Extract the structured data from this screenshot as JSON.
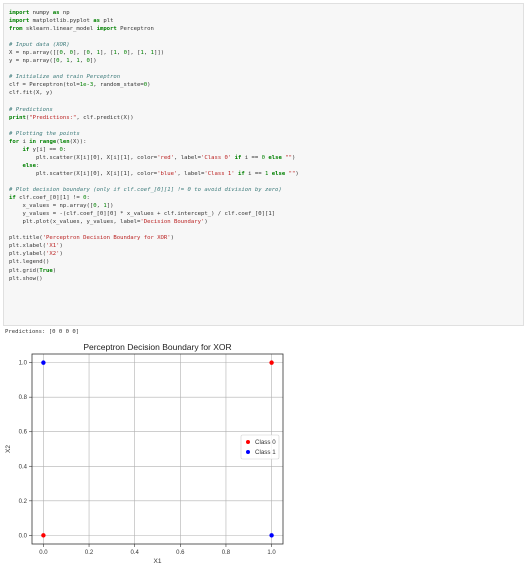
{
  "code_lines": [
    [
      [
        "kw",
        "import"
      ],
      [
        "p",
        " numpy "
      ],
      [
        "kw",
        "as"
      ],
      [
        "p",
        " np"
      ]
    ],
    [
      [
        "kw",
        "import"
      ],
      [
        "p",
        " matplotlib.pyplot "
      ],
      [
        "kw",
        "as"
      ],
      [
        "p",
        " plt"
      ]
    ],
    [
      [
        "kw",
        "from"
      ],
      [
        "p",
        " sklearn.linear_model "
      ],
      [
        "kw",
        "import"
      ],
      [
        "p",
        " Perceptron"
      ]
    ],
    [],
    [
      [
        "cm",
        "# Input data (XOR)"
      ]
    ],
    [
      [
        "p",
        "X = np.array([["
      ],
      [
        "nu",
        "0"
      ],
      [
        "p",
        ", "
      ],
      [
        "nu",
        "0"
      ],
      [
        "p",
        "], ["
      ],
      [
        "nu",
        "0"
      ],
      [
        "p",
        ", "
      ],
      [
        "nu",
        "1"
      ],
      [
        "p",
        "], ["
      ],
      [
        "nu",
        "1"
      ],
      [
        "p",
        ", "
      ],
      [
        "nu",
        "0"
      ],
      [
        "p",
        "], ["
      ],
      [
        "nu",
        "1"
      ],
      [
        "p",
        ", "
      ],
      [
        "nu",
        "1"
      ],
      [
        "p",
        "]])"
      ]
    ],
    [
      [
        "p",
        "y = np.array(["
      ],
      [
        "nu",
        "0"
      ],
      [
        "p",
        ", "
      ],
      [
        "nu",
        "1"
      ],
      [
        "p",
        ", "
      ],
      [
        "nu",
        "1"
      ],
      [
        "p",
        ", "
      ],
      [
        "nu",
        "0"
      ],
      [
        "p",
        "])"
      ]
    ],
    [],
    [
      [
        "cm",
        "# Initialize and train Perceptron"
      ]
    ],
    [
      [
        "p",
        "clf = Perceptron(tol="
      ],
      [
        "nu",
        "1e-3"
      ],
      [
        "p",
        ", random_state="
      ],
      [
        "nu",
        "0"
      ],
      [
        "p",
        ")"
      ]
    ],
    [
      [
        "p",
        "clf.fit(X, y)"
      ]
    ],
    [],
    [
      [
        "cm",
        "# Predictions"
      ]
    ],
    [
      [
        "kw",
        "print"
      ],
      [
        "p",
        "("
      ],
      [
        "st",
        "\"Predictions:\""
      ],
      [
        "p",
        ", clf.predict(X))"
      ]
    ],
    [],
    [
      [
        "cm",
        "# Plotting the points"
      ]
    ],
    [
      [
        "kw",
        "for"
      ],
      [
        "p",
        " i "
      ],
      [
        "kw",
        "in"
      ],
      [
        "p",
        " "
      ],
      [
        "kw",
        "range"
      ],
      [
        "p",
        "("
      ],
      [
        "kw",
        "len"
      ],
      [
        "p",
        "(X)):"
      ]
    ],
    [
      [
        "p",
        "    "
      ],
      [
        "kw",
        "if"
      ],
      [
        "p",
        " y[i] == "
      ],
      [
        "nu",
        "0"
      ],
      [
        "p",
        ":"
      ]
    ],
    [
      [
        "p",
        "        plt.scatter(X[i][0], X[i][1], color="
      ],
      [
        "st",
        "'red'"
      ],
      [
        "p",
        ", label="
      ],
      [
        "st",
        "'Class 0'"
      ],
      [
        "p",
        " "
      ],
      [
        "kw",
        "if"
      ],
      [
        "p",
        " i == "
      ],
      [
        "nu",
        "0"
      ],
      [
        "p",
        " "
      ],
      [
        "kw",
        "else"
      ],
      [
        "p",
        " "
      ],
      [
        "st",
        "\"\""
      ],
      [
        "p",
        ")"
      ]
    ],
    [
      [
        "p",
        "    "
      ],
      [
        "kw",
        "else"
      ],
      [
        "p",
        ":"
      ]
    ],
    [
      [
        "p",
        "        plt.scatter(X[i][0], X[i][1], color="
      ],
      [
        "st",
        "'blue'"
      ],
      [
        "p",
        ", label="
      ],
      [
        "st",
        "'Class 1'"
      ],
      [
        "p",
        " "
      ],
      [
        "kw",
        "if"
      ],
      [
        "p",
        " i == "
      ],
      [
        "nu",
        "1"
      ],
      [
        "p",
        " "
      ],
      [
        "kw",
        "else"
      ],
      [
        "p",
        " "
      ],
      [
        "st",
        "\"\""
      ],
      [
        "p",
        ")"
      ]
    ],
    [],
    [
      [
        "cm",
        "# Plot decision boundary (only if clf.coef_[0][1] != 0 to avoid division by zero)"
      ]
    ],
    [
      [
        "kw",
        "if"
      ],
      [
        "p",
        " clf.coef_[0][1] != "
      ],
      [
        "nu",
        "0"
      ],
      [
        "p",
        ":"
      ]
    ],
    [
      [
        "p",
        "    x_values = np.array(["
      ],
      [
        "nu",
        "0"
      ],
      [
        "p",
        ", "
      ],
      [
        "nu",
        "1"
      ],
      [
        "p",
        "])"
      ]
    ],
    [
      [
        "p",
        "    y_values = -(clf.coef_[0][0] * x_values + clf.intercept_) / clf.coef_[0][1]"
      ]
    ],
    [
      [
        "p",
        "    plt.plot(x_values, y_values, label="
      ],
      [
        "st",
        "'Decision Boundary'"
      ],
      [
        "p",
        ")"
      ]
    ],
    [],
    [
      [
        "p",
        "plt.title("
      ],
      [
        "st",
        "'Perceptron Decision Boundary for XOR'"
      ],
      [
        "p",
        ")"
      ]
    ],
    [
      [
        "p",
        "plt.xlabel("
      ],
      [
        "st",
        "'X1'"
      ],
      [
        "p",
        ")"
      ]
    ],
    [
      [
        "p",
        "plt.ylabel("
      ],
      [
        "st",
        "'X2'"
      ],
      [
        "p",
        ")"
      ]
    ],
    [
      [
        "p",
        "plt.legend()"
      ]
    ],
    [
      [
        "p",
        "plt.grid("
      ],
      [
        "kw",
        "True"
      ],
      [
        "p",
        ")"
      ]
    ],
    [
      [
        "p",
        "plt.show()"
      ]
    ]
  ],
  "output_text": "Predictions: [0 0 0 0]",
  "chart_data": {
    "type": "scatter",
    "title": "Perceptron Decision Boundary for XOR",
    "xlabel": "X1",
    "ylabel": "X2",
    "xlim": [
      -0.05,
      1.05
    ],
    "ylim": [
      -0.05,
      1.05
    ],
    "xticks": [
      0.0,
      0.2,
      0.4,
      0.6,
      0.8,
      1.0
    ],
    "yticks": [
      0.0,
      0.2,
      0.4,
      0.6,
      0.8,
      1.0
    ],
    "xtick_labels": [
      "0.0",
      "0.2",
      "0.4",
      "0.6",
      "0.8",
      "1.0"
    ],
    "ytick_labels": [
      "0.0",
      "0.2",
      "0.4",
      "0.6",
      "0.8",
      "1.0"
    ],
    "grid": true,
    "legend_position": "center-right",
    "series": [
      {
        "name": "Class 0",
        "color": "#ff0000",
        "points": [
          [
            0,
            0
          ],
          [
            1,
            1
          ]
        ]
      },
      {
        "name": "Class 1",
        "color": "#0000ff",
        "points": [
          [
            0,
            1
          ],
          [
            1,
            0
          ]
        ]
      }
    ]
  }
}
